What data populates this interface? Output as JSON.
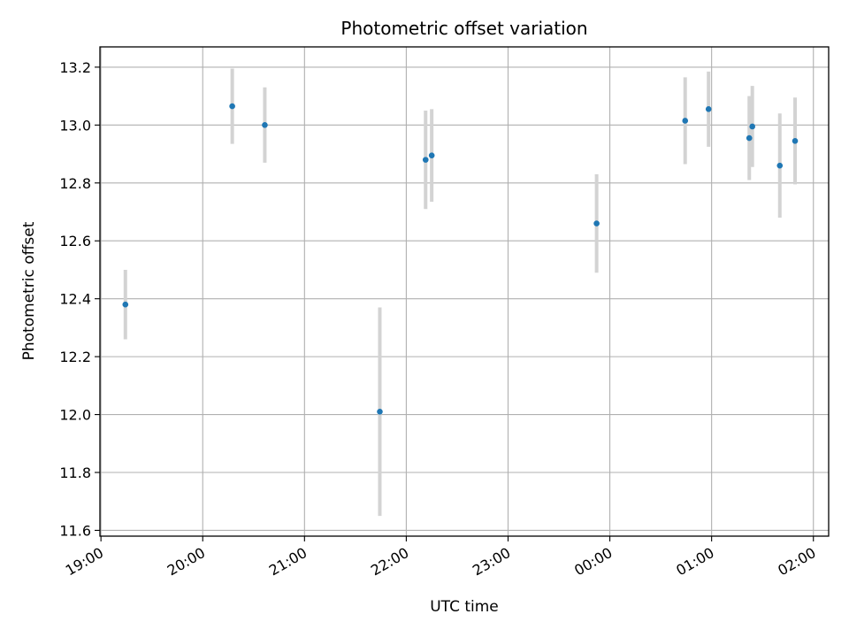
{
  "chart_data": {
    "type": "scatter",
    "title": "Photometric offset variation",
    "xlabel": "UTC time",
    "ylabel": "Photometric offset",
    "grid": true,
    "x_axis_type": "time",
    "x_ticks": [
      "19:00",
      "20:00",
      "21:00",
      "22:00",
      "23:00",
      "00:00",
      "01:00",
      "02:00"
    ],
    "x_tick_values": [
      19.0,
      20.0,
      21.0,
      22.0,
      23.0,
      24.0,
      25.0,
      26.0
    ],
    "xlim": [
      18.99,
      26.15
    ],
    "ylim": [
      11.58,
      13.27
    ],
    "y_ticks": [
      11.6,
      11.8,
      12.0,
      12.2,
      12.4,
      12.6,
      12.8,
      13.0,
      13.2
    ],
    "y_tick_labels": [
      "11.6",
      "11.8",
      "12.0",
      "12.2",
      "12.4",
      "12.6",
      "12.8",
      "13.0",
      "13.2"
    ],
    "series": [
      {
        "marker_color": "#1f77b4",
        "errorbar_color": "#d3d3d3",
        "points": [
          {
            "time": "19:14",
            "x": 19.24,
            "y": 12.38,
            "yerr": 0.12
          },
          {
            "time": "20:17",
            "x": 20.29,
            "y": 13.065,
            "yerr": 0.13
          },
          {
            "time": "20:37",
            "x": 20.61,
            "y": 13.0,
            "yerr": 0.13
          },
          {
            "time": "21:44",
            "x": 21.74,
            "y": 12.01,
            "yerr": 0.36
          },
          {
            "time": "22:11",
            "x": 22.19,
            "y": 12.88,
            "yerr": 0.17
          },
          {
            "time": "22:15",
            "x": 22.25,
            "y": 12.895,
            "yerr": 0.16
          },
          {
            "time": "23:52",
            "x": 23.87,
            "y": 12.66,
            "yerr": 0.17
          },
          {
            "time": "00:44",
            "x": 24.74,
            "y": 13.015,
            "yerr": 0.15
          },
          {
            "time": "00:58",
            "x": 24.97,
            "y": 13.055,
            "yerr": 0.13
          },
          {
            "time": "01:22",
            "x": 25.37,
            "y": 12.955,
            "yerr": 0.145
          },
          {
            "time": "01:24",
            "x": 25.4,
            "y": 12.995,
            "yerr": 0.14
          },
          {
            "time": "01:40",
            "x": 25.67,
            "y": 12.86,
            "yerr": 0.18
          },
          {
            "time": "01:49",
            "x": 25.82,
            "y": 12.945,
            "yerr": 0.15
          }
        ]
      }
    ]
  }
}
